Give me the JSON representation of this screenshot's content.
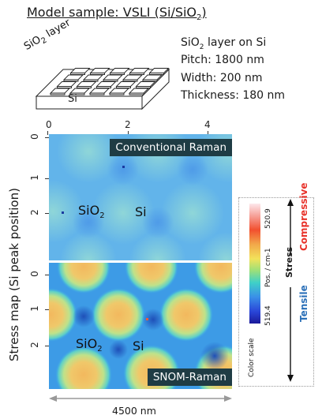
{
  "title": {
    "prefix": "Model sample: VSLI (Si/SiO",
    "sub": "2",
    "suffix": ")"
  },
  "sample": {
    "layer_text_a": "SiO",
    "layer_text_sub": "2",
    "layer_text_b": " layer",
    "substrate": "Si"
  },
  "specs": {
    "line1_a": "SiO",
    "line1_sub": "2",
    "line1_b": " layer on Si",
    "line2": "Pitch: 1800 nm",
    "line3": "Width: 200 nm",
    "line4": "Thickness: 180 nm"
  },
  "maps": {
    "top_label": "Conventional Raman",
    "bottom_label": "SNOM-Raman",
    "x_ticks": [
      "0",
      "2",
      "4"
    ],
    "y_ticks_top": [
      "0",
      "1",
      "2"
    ],
    "y_ticks_bottom": [
      "0",
      "1",
      "2"
    ],
    "region_sio2_a": "SiO",
    "region_sio2_sub": "2",
    "region_si": "Si",
    "y_title": "Stress map (Si peak position)",
    "scale_text": "4500 nm"
  },
  "colorbar": {
    "title": "Color scale",
    "unit": "Pos. / cm-1",
    "max": "520.9",
    "min": "519.4",
    "stress": "Stress",
    "compressive": "Compressive",
    "tensile": "Tensile",
    "compressive_color": "#e8322a",
    "tensile_color": "#2a6fb8"
  }
}
